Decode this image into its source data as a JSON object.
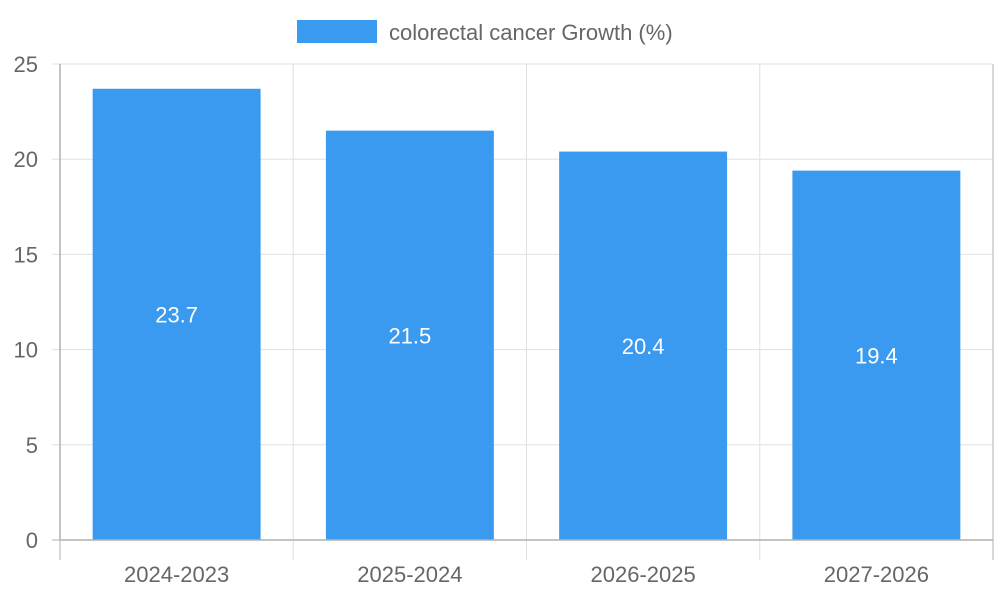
{
  "chart_data": {
    "type": "bar",
    "categories": [
      "2024-2023",
      "2025-2024",
      "2026-2025",
      "2027-2026"
    ],
    "series": [
      {
        "name": "colorectal cancer Growth (%)",
        "values": [
          23.7,
          21.5,
          20.4,
          19.4
        ],
        "color": "#399af0"
      }
    ],
    "data_labels": [
      "23.7",
      "21.5",
      "20.4",
      "19.4"
    ],
    "ylim": [
      0,
      25
    ],
    "y_ticks": [
      "0",
      "5",
      "10",
      "15",
      "20",
      "25"
    ],
    "grid": true,
    "legend_position": "top",
    "xlabel": "",
    "ylabel": ""
  },
  "colors": {
    "bar": "#399af0",
    "grid": "#e0e0e0",
    "axis": "#b0b0b0",
    "text": "#666666",
    "label": "#ffffff"
  }
}
